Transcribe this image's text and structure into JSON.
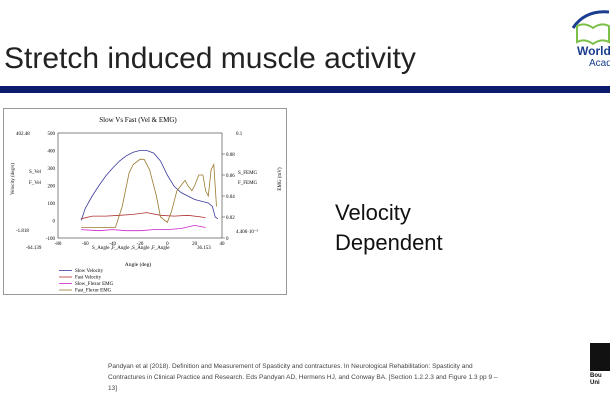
{
  "slide": {
    "title": "Stretch induced muscle activity",
    "side_text_1": "Velocity",
    "side_text_2": "Dependent",
    "reference": "Pandyan et al (2018). Definition and Measurement of Spasticity and contractures. In Neurological Rehabilitation: Spasticity and Contractures in Clinical Practice and Research. Eds Pandyan AD, Hermens HJ, and Conway BA. [Section 1.2.2.3 and Figure 1.3 pp 9 – 13]",
    "logo_top": {
      "line1": "World",
      "line2": "Acad"
    },
    "logo_bottom": {
      "line1": "Bou",
      "line2": "Uni"
    },
    "accent_color": "#0b1b6e"
  },
  "chart_data": {
    "type": "line",
    "title": "Slow Vs Fast (Vel & EMG)",
    "xlabel": "Angle (deg)",
    "ylabel": "Velocity (deg/s)",
    "y2label": "EMG (mV)",
    "xlim": [
      -80,
      40
    ],
    "ylim": [
      -100,
      500
    ],
    "y2lim": [
      0,
      0.1
    ],
    "xticks": [
      "-80",
      "-60",
      "-40",
      "-20",
      "0",
      "20",
      "40"
    ],
    "yticks": [
      "-100",
      "0",
      "100",
      "200",
      "300",
      "400",
      "500"
    ],
    "y2ticks": [
      "0",
      "0.02",
      "0.04",
      "0.06",
      "0.08"
    ],
    "y2top_label": "0.1",
    "annotations": {
      "ymax": "402.48",
      "ymin": "-1.818",
      "xmin": "-64.139",
      "xmax": "36.153",
      "y2min": "4.406·10⁻³",
      "ylegend1": "S_Vel",
      "ylegend2": "F_Vel",
      "y2legend1": "S_FEMG",
      "y2legend2": "F_FEMG",
      "xvars": "S_Angle ,F_Angle ,S_Angle ,F_Angle"
    },
    "legend_position": "bottom-left",
    "series": [
      {
        "name": "Slow Velocity",
        "axis": "left",
        "color": "#3a3a9a",
        "x": [
          -63,
          -60,
          -55,
          -50,
          -45,
          -40,
          -35,
          -30,
          -25,
          -20,
          -15,
          -10,
          -5,
          0,
          5,
          10,
          15,
          20,
          25,
          30,
          33,
          35,
          37
        ],
        "y": [
          0,
          70,
          140,
          200,
          255,
          300,
          340,
          370,
          390,
          400,
          400,
          385,
          340,
          260,
          195,
          160,
          140,
          120,
          110,
          100,
          80,
          20,
          10
        ]
      },
      {
        "name": "Fast Velocity",
        "axis": "left",
        "color": "#b03030",
        "x": [
          -63,
          -55,
          -45,
          -35,
          -25,
          -15,
          -5,
          5,
          15,
          25,
          28
        ],
        "y": [
          10,
          25,
          25,
          30,
          35,
          45,
          30,
          25,
          30,
          20,
          15
        ]
      },
      {
        "name": "Slow_Flexor EMG",
        "axis": "right",
        "color": "#cc22cc",
        "x": [
          -63,
          -50,
          -40,
          -30,
          -20,
          -10,
          0,
          10,
          20,
          28
        ],
        "y": [
          0.008,
          0.007,
          0.008,
          0.007,
          0.007,
          0.008,
          0.008,
          0.009,
          0.012,
          0.01
        ]
      },
      {
        "name": "Fast_Flexor EMG",
        "axis": "right",
        "color": "#9a7a30",
        "x": [
          -63,
          -50,
          -38,
          -33,
          -28,
          -25,
          -20,
          -17,
          -13,
          -8,
          -5,
          0,
          3,
          7,
          10,
          13,
          15,
          18,
          20,
          23,
          26,
          28,
          30,
          32,
          34,
          36
        ],
        "y": [
          0.01,
          0.01,
          0.01,
          0.03,
          0.062,
          0.07,
          0.075,
          0.075,
          0.065,
          0.04,
          0.02,
          0.015,
          0.025,
          0.045,
          0.05,
          0.055,
          0.05,
          0.045,
          0.05,
          0.06,
          0.06,
          0.045,
          0.04,
          0.065,
          0.07,
          0.03
        ]
      }
    ]
  }
}
